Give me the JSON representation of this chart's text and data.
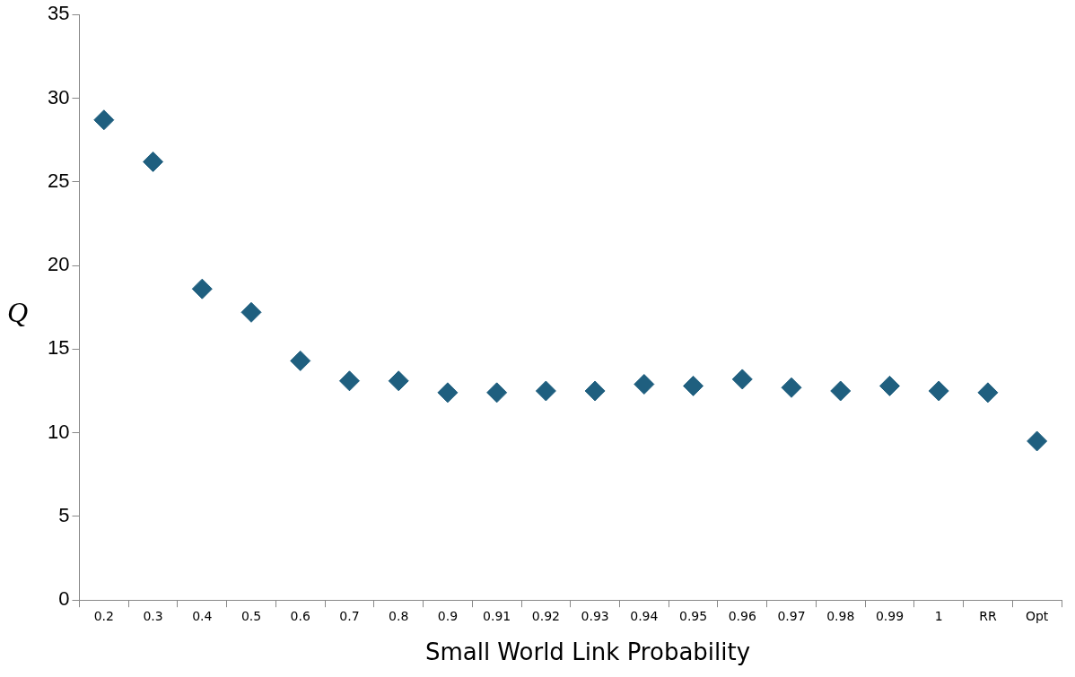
{
  "chart_data": {
    "type": "scatter",
    "categories": [
      "0.2",
      "0.3",
      "0.4",
      "0.5",
      "0.6",
      "0.7",
      "0.8",
      "0.9",
      "0.91",
      "0.92",
      "0.93",
      "0.94",
      "0.95",
      "0.96",
      "0.97",
      "0.98",
      "0.99",
      "1",
      "RR",
      "Opt"
    ],
    "series": [
      {
        "color": "#1f5f7f",
        "values": [
          28.7,
          26.2,
          18.6,
          17.2,
          14.3,
          13.1,
          13.1,
          12.4,
          12.4,
          12.5,
          12.5,
          12.9,
          12.8,
          13.2,
          12.7,
          12.5,
          12.8,
          12.5,
          12.4,
          9.5
        ]
      }
    ],
    "xlabel": "Small World  Link Probability",
    "ylabel": "Q",
    "ylim": [
      0,
      35
    ],
    "yticks": [
      0,
      5,
      10,
      15,
      20,
      25,
      30,
      35
    ],
    "marker": "diamond",
    "grid": false,
    "legend": false
  }
}
